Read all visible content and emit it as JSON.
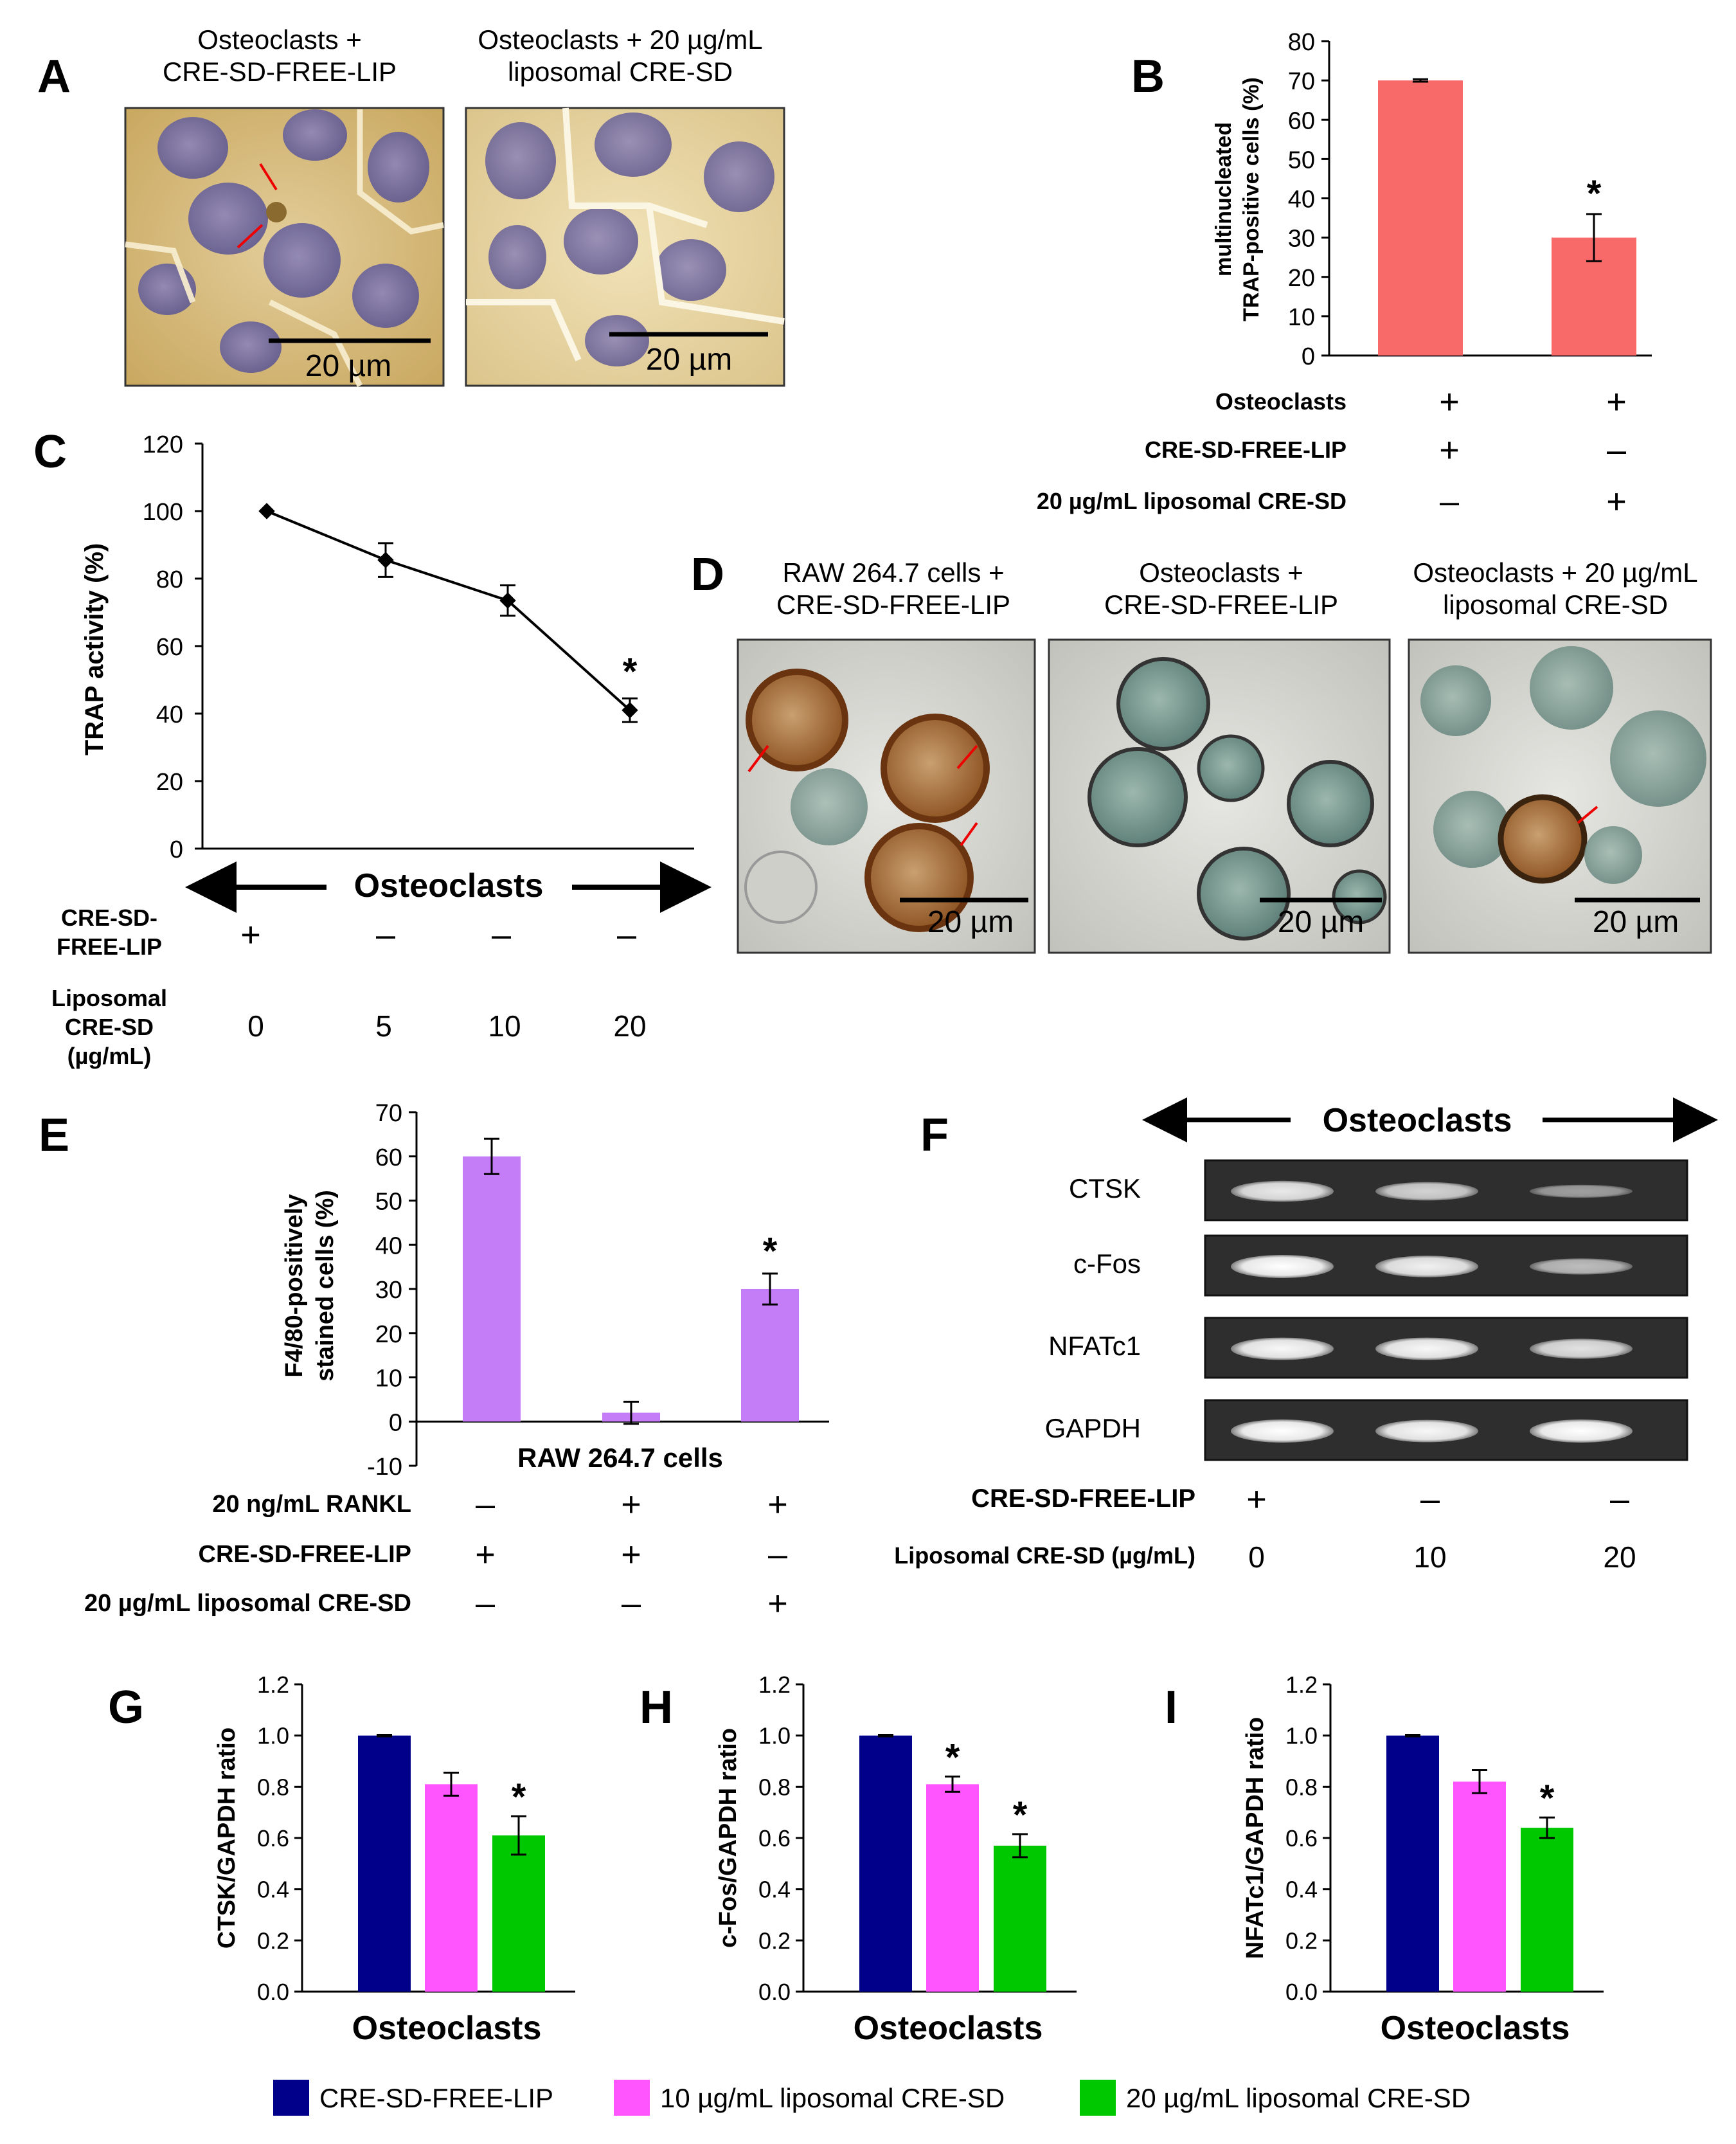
{
  "panels": {
    "A": {
      "label": "A",
      "captions": [
        {
          "line1": "Osteoclasts +",
          "line2": "CRE-SD-FREE-LIP"
        },
        {
          "line1": "Osteoclasts + 20 µg/mL",
          "line2": "liposomal CRE-SD"
        }
      ],
      "scale_bar": "20 µm"
    },
    "D": {
      "label": "D",
      "captions": [
        {
          "line1": "RAW 264.7 cells +",
          "line2": "CRE-SD-FREE-LIP"
        },
        {
          "line1": "Osteoclasts +",
          "line2": "CRE-SD-FREE-LIP"
        },
        {
          "line1": "Osteoclasts + 20 µg/mL",
          "line2": "liposomal CRE-SD"
        }
      ],
      "scale_bar": "20 µm"
    },
    "F": {
      "label": "F",
      "header": "Osteoclasts",
      "bands": [
        "CTSK",
        "c-Fos",
        "NFATc1",
        "GAPDH"
      ],
      "band_intensity": [
        [
          0.85,
          0.7,
          0.35
        ],
        [
          1.0,
          0.9,
          0.55
        ],
        [
          0.95,
          0.95,
          0.8
        ],
        [
          1.0,
          0.95,
          1.0
        ]
      ],
      "rows": [
        {
          "label": "CRE-SD-FREE-LIP",
          "values": [
            "+",
            "–",
            "–"
          ]
        },
        {
          "label": "Liposomal CRE-SD (µg/mL)",
          "values": [
            "0",
            "10",
            "20"
          ]
        }
      ]
    }
  },
  "chart_data": [
    {
      "panel": "B",
      "type": "bar",
      "ylabel_line1": "multinucleated",
      "ylabel_line2": "TRAP-positive cells (%)",
      "ylim": [
        0,
        80
      ],
      "yticks": [
        0,
        10,
        20,
        30,
        40,
        50,
        60,
        70,
        80
      ],
      "values": [
        70,
        30
      ],
      "errors": [
        0.3,
        6
      ],
      "significance": [
        "",
        "*"
      ],
      "color": "#f86a6a",
      "rows": [
        {
          "label": "Osteoclasts",
          "values": [
            "+",
            "+"
          ]
        },
        {
          "label": "CRE-SD-FREE-LIP",
          "values": [
            "+",
            "–"
          ]
        },
        {
          "label": "20 µg/mL liposomal CRE-SD",
          "values": [
            "–",
            "+"
          ]
        }
      ]
    },
    {
      "panel": "C",
      "type": "line",
      "ylabel": "TRAP activity (%)",
      "ylim": [
        0,
        120
      ],
      "yticks": [
        0,
        20,
        40,
        60,
        80,
        100,
        120
      ],
      "x": [
        0,
        5,
        10,
        20
      ],
      "values": [
        100,
        85.5,
        73.5,
        41
      ],
      "errors": [
        0.5,
        5,
        4.5,
        3.5
      ],
      "significance": [
        "",
        "",
        "",
        "*"
      ],
      "arrow_label": "Osteoclasts",
      "row1_label_line1": "CRE-SD-",
      "row1_label_line2": "FREE-LIP",
      "row1_values": [
        "+",
        "–",
        "–",
        "–"
      ],
      "row2_label_line1": "Liposomal",
      "row2_label_line2": "CRE-SD",
      "row2_label_line3": "(µg/mL)",
      "row2_values": [
        "0",
        "5",
        "10",
        "20"
      ]
    },
    {
      "panel": "E",
      "type": "bar",
      "ylabel_line1": "F4/80-positively",
      "ylabel_line2": "stained cells (%)",
      "ylim": [
        -10,
        70
      ],
      "yticks": [
        -10,
        0,
        10,
        20,
        30,
        40,
        50,
        60,
        70
      ],
      "values": [
        60,
        2,
        30
      ],
      "errors": [
        4,
        2.5,
        3.5
      ],
      "significance": [
        "",
        "",
        "*"
      ],
      "color": "#c57cf7",
      "xlabel": "RAW 264.7 cells",
      "rows": [
        {
          "label": "20 ng/mL RANKL",
          "values": [
            "–",
            "+",
            "+"
          ]
        },
        {
          "label": "CRE-SD-FREE-LIP",
          "values": [
            "+",
            "+",
            "–"
          ]
        },
        {
          "label": "20 µg/mL liposomal CRE-SD",
          "values": [
            "–",
            "–",
            "+"
          ]
        }
      ]
    },
    {
      "panel": "G",
      "type": "bar",
      "ylabel": "CTSK/GAPDH ratio",
      "xlabel": "Osteoclasts",
      "ylim": [
        0,
        1.2
      ],
      "yticks": [
        "0.0",
        "0.2",
        "0.4",
        "0.6",
        "0.8",
        "1.0",
        "1.2"
      ],
      "values": [
        1.0,
        0.81,
        0.61
      ],
      "errors": [
        0.003,
        0.045,
        0.075
      ],
      "significance": [
        "",
        "",
        "*"
      ]
    },
    {
      "panel": "H",
      "type": "bar",
      "ylabel": "c-Fos/GAPDH ratio",
      "xlabel": "Osteoclasts",
      "ylim": [
        0,
        1.2
      ],
      "yticks": [
        "0.0",
        "0.2",
        "0.4",
        "0.6",
        "0.8",
        "1.0",
        "1.2"
      ],
      "values": [
        1.0,
        0.81,
        0.57
      ],
      "errors": [
        0.003,
        0.03,
        0.045
      ],
      "significance": [
        "",
        "*",
        "*"
      ]
    },
    {
      "panel": "I",
      "type": "bar",
      "ylabel": "NFATc1/GAPDH ratio",
      "xlabel": "Osteoclasts",
      "ylim": [
        0,
        1.2
      ],
      "yticks": [
        "0.0",
        "0.2",
        "0.4",
        "0.6",
        "0.8",
        "1.0",
        "1.2"
      ],
      "values": [
        1.0,
        0.82,
        0.64
      ],
      "errors": [
        0.003,
        0.045,
        0.04
      ],
      "significance": [
        "",
        "",
        "*"
      ]
    }
  ],
  "legend": [
    {
      "label": "CRE-SD-FREE-LIP",
      "color": "#00008b"
    },
    {
      "label": "10 µg/mL liposomal CRE-SD",
      "color": "#ff55ff"
    },
    {
      "label": "20 µg/mL liposomal CRE-SD",
      "color": "#00c800"
    }
  ]
}
